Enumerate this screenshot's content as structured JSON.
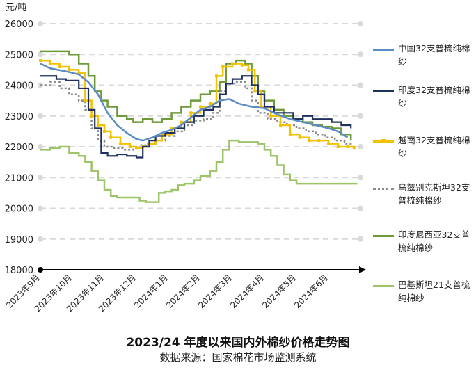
{
  "chart_data": {
    "type": "line",
    "title": "2023/24 年度以来国内外棉纱价格走势图",
    "subtitle": "数据来源：国家棉花市场监测系统",
    "ylabel": "元/吨",
    "ylim": [
      18000,
      26000
    ],
    "yticks": [
      18000,
      19000,
      20000,
      21000,
      22000,
      23000,
      24000,
      25000,
      26000
    ],
    "ytick_labels": [
      "18000",
      "19000",
      "20000",
      "21000",
      "22000",
      "23000",
      "24000",
      "25000",
      "26000"
    ],
    "xticks": [
      "2023年9月",
      "2023年10月",
      "2023年11月",
      "2023年12月",
      "2024年1月",
      "2024年2月",
      "2024年3月",
      "2024年4月",
      "2024年5月",
      "2024年6月"
    ],
    "grid": "horizontal dashed",
    "legend_position": "right",
    "series": [
      {
        "name": "中国32支普梳纯棉纱",
        "color": "#5b8cc4",
        "step": false,
        "values": [
          [
            0,
            24700
          ],
          [
            0.3,
            24550
          ],
          [
            0.8,
            24450
          ],
          [
            1.2,
            24350
          ],
          [
            1.5,
            24100
          ],
          [
            1.8,
            23700
          ],
          [
            2.1,
            23100
          ],
          [
            2.4,
            22700
          ],
          [
            2.7,
            22450
          ],
          [
            3.0,
            22250
          ],
          [
            3.2,
            22200
          ],
          [
            3.5,
            22300
          ],
          [
            3.8,
            22450
          ],
          [
            4.1,
            22550
          ],
          [
            4.4,
            22700
          ],
          [
            4.7,
            22950
          ],
          [
            5.0,
            23200
          ],
          [
            5.3,
            23300
          ],
          [
            5.6,
            23500
          ],
          [
            5.9,
            23550
          ],
          [
            6.2,
            23400
          ],
          [
            6.6,
            23300
          ],
          [
            7.0,
            23250
          ],
          [
            7.4,
            23050
          ],
          [
            7.8,
            22900
          ],
          [
            8.2,
            22800
          ],
          [
            8.6,
            22700
          ],
          [
            9.0,
            22600
          ],
          [
            9.3,
            22500
          ],
          [
            9.6,
            22300
          ]
        ]
      },
      {
        "name": "印度32支普梳纯棉纱",
        "color": "#1f2f5e",
        "step": true,
        "values": [
          [
            0,
            24300
          ],
          [
            0.5,
            24200
          ],
          [
            0.8,
            24150
          ],
          [
            1.2,
            23900
          ],
          [
            1.5,
            23200
          ],
          [
            1.7,
            22600
          ],
          [
            1.9,
            21800
          ],
          [
            2.1,
            21700
          ],
          [
            2.4,
            21750
          ],
          [
            2.7,
            21700
          ],
          [
            3.0,
            21650
          ],
          [
            3.2,
            22000
          ],
          [
            3.4,
            22200
          ],
          [
            3.6,
            22350
          ],
          [
            3.9,
            22450
          ],
          [
            4.2,
            22600
          ],
          [
            4.5,
            22800
          ],
          [
            4.8,
            23000
          ],
          [
            5.1,
            23200
          ],
          [
            5.4,
            23300
          ],
          [
            5.6,
            23700
          ],
          [
            5.8,
            24050
          ],
          [
            6.0,
            24200
          ],
          [
            6.3,
            24300
          ],
          [
            6.6,
            24000
          ],
          [
            6.8,
            23700
          ],
          [
            7.0,
            23300
          ],
          [
            7.3,
            23100
          ],
          [
            7.6,
            23100
          ],
          [
            7.9,
            22900
          ],
          [
            8.2,
            23000
          ],
          [
            8.5,
            22900
          ],
          [
            8.8,
            22900
          ],
          [
            9.1,
            22800
          ],
          [
            9.4,
            22700
          ],
          [
            9.7,
            22600
          ]
        ]
      },
      {
        "name": "越南32支普梳纯棉纱",
        "color": "#f2c200",
        "step": true,
        "values": [
          [
            0,
            24800
          ],
          [
            0.3,
            24700
          ],
          [
            0.6,
            24600
          ],
          [
            0.9,
            24500
          ],
          [
            1.2,
            24400
          ],
          [
            1.4,
            23500
          ],
          [
            1.6,
            23000
          ],
          [
            1.8,
            22700
          ],
          [
            2.0,
            22500
          ],
          [
            2.2,
            22300
          ],
          [
            2.5,
            22100
          ],
          [
            2.8,
            22000
          ],
          [
            3.0,
            21950
          ],
          [
            3.2,
            22000
          ],
          [
            3.4,
            22100
          ],
          [
            3.6,
            22200
          ],
          [
            3.8,
            22400
          ],
          [
            4.1,
            22600
          ],
          [
            4.4,
            22800
          ],
          [
            4.7,
            23100
          ],
          [
            5.0,
            23300
          ],
          [
            5.3,
            23400
          ],
          [
            5.5,
            24300
          ],
          [
            5.7,
            24600
          ],
          [
            6.0,
            24700
          ],
          [
            6.3,
            24650
          ],
          [
            6.5,
            24500
          ],
          [
            6.7,
            23800
          ],
          [
            6.9,
            23300
          ],
          [
            7.2,
            23000
          ],
          [
            7.5,
            22700
          ],
          [
            7.8,
            22400
          ],
          [
            8.1,
            22300
          ],
          [
            8.4,
            22200
          ],
          [
            8.7,
            22200
          ],
          [
            9.0,
            22100
          ],
          [
            9.3,
            22000
          ],
          [
            9.6,
            22000
          ],
          [
            9.8,
            21950
          ]
        ]
      },
      {
        "name": "乌兹别克斯坦32支普梳纯棉纱",
        "color": "#8a8a8a",
        "step": true,
        "values": [
          [
            0,
            24000
          ],
          [
            0.3,
            24100
          ],
          [
            0.6,
            23900
          ],
          [
            0.9,
            23700
          ],
          [
            1.2,
            23500
          ],
          [
            1.4,
            23200
          ],
          [
            1.6,
            22600
          ],
          [
            1.8,
            22200
          ],
          [
            2.0,
            22000
          ],
          [
            2.3,
            21950
          ],
          [
            2.6,
            21900
          ],
          [
            2.9,
            21950
          ],
          [
            3.1,
            22050
          ],
          [
            3.3,
            22100
          ],
          [
            3.6,
            22200
          ],
          [
            3.9,
            22350
          ],
          [
            4.2,
            22500
          ],
          [
            4.5,
            22700
          ],
          [
            4.8,
            22850
          ],
          [
            5.1,
            22900
          ],
          [
            5.4,
            23100
          ],
          [
            5.6,
            23800
          ],
          [
            5.8,
            24050
          ],
          [
            6.1,
            24100
          ],
          [
            6.4,
            23900
          ],
          [
            6.6,
            23500
          ],
          [
            6.8,
            23100
          ],
          [
            7.1,
            22900
          ],
          [
            7.4,
            22800
          ],
          [
            7.7,
            22700
          ],
          [
            8.0,
            22600
          ],
          [
            8.3,
            22500
          ],
          [
            8.6,
            22400
          ],
          [
            8.9,
            22300
          ],
          [
            9.2,
            22200
          ],
          [
            9.5,
            22100
          ],
          [
            9.8,
            22100
          ]
        ]
      },
      {
        "name": "印度尼西亚32支普梳纯棉纱",
        "color": "#6f9a3a",
        "step": true,
        "values": [
          [
            0,
            25100
          ],
          [
            0.5,
            25100
          ],
          [
            0.9,
            25000
          ],
          [
            1.2,
            24700
          ],
          [
            1.5,
            24300
          ],
          [
            1.7,
            23800
          ],
          [
            1.9,
            23500
          ],
          [
            2.1,
            23300
          ],
          [
            2.4,
            23000
          ],
          [
            2.7,
            22900
          ],
          [
            2.9,
            22800
          ],
          [
            3.2,
            22900
          ],
          [
            3.5,
            22800
          ],
          [
            3.8,
            22900
          ],
          [
            4.1,
            23100
          ],
          [
            4.4,
            23300
          ],
          [
            4.7,
            23500
          ],
          [
            5.0,
            23700
          ],
          [
            5.3,
            23800
          ],
          [
            5.6,
            24100
          ],
          [
            5.8,
            24700
          ],
          [
            6.1,
            24800
          ],
          [
            6.4,
            24700
          ],
          [
            6.6,
            24300
          ],
          [
            6.8,
            23800
          ],
          [
            7.0,
            23500
          ],
          [
            7.3,
            23200
          ],
          [
            7.6,
            23000
          ],
          [
            7.9,
            22900
          ],
          [
            8.2,
            22800
          ],
          [
            8.5,
            22700
          ],
          [
            8.8,
            22650
          ],
          [
            9.1,
            22600
          ],
          [
            9.4,
            22400
          ],
          [
            9.7,
            22200
          ]
        ]
      },
      {
        "name": "巴基斯坦21支普梳纯棉纱",
        "color": "#9dc46a",
        "step": true,
        "values": [
          [
            0,
            21900
          ],
          [
            0.3,
            21950
          ],
          [
            0.6,
            22000
          ],
          [
            0.9,
            21800
          ],
          [
            1.2,
            21700
          ],
          [
            1.4,
            21500
          ],
          [
            1.6,
            21200
          ],
          [
            1.8,
            20900
          ],
          [
            2.0,
            20600
          ],
          [
            2.2,
            20400
          ],
          [
            2.4,
            20350
          ],
          [
            2.7,
            20350
          ],
          [
            2.9,
            20350
          ],
          [
            3.1,
            20250
          ],
          [
            3.3,
            20200
          ],
          [
            3.5,
            20200
          ],
          [
            3.7,
            20500
          ],
          [
            3.9,
            20550
          ],
          [
            4.1,
            20600
          ],
          [
            4.3,
            20750
          ],
          [
            4.5,
            20800
          ],
          [
            4.8,
            20900
          ],
          [
            5.0,
            21050
          ],
          [
            5.3,
            21200
          ],
          [
            5.5,
            21500
          ],
          [
            5.7,
            21900
          ],
          [
            5.9,
            22200
          ],
          [
            6.2,
            22150
          ],
          [
            6.5,
            22150
          ],
          [
            6.8,
            22100
          ],
          [
            7.0,
            21900
          ],
          [
            7.2,
            21700
          ],
          [
            7.4,
            21400
          ],
          [
            7.6,
            21100
          ],
          [
            7.8,
            20900
          ],
          [
            8.0,
            20800
          ],
          [
            8.5,
            20800
          ],
          [
            9.0,
            20800
          ],
          [
            9.5,
            20800
          ],
          [
            9.9,
            20800
          ]
        ]
      }
    ]
  }
}
